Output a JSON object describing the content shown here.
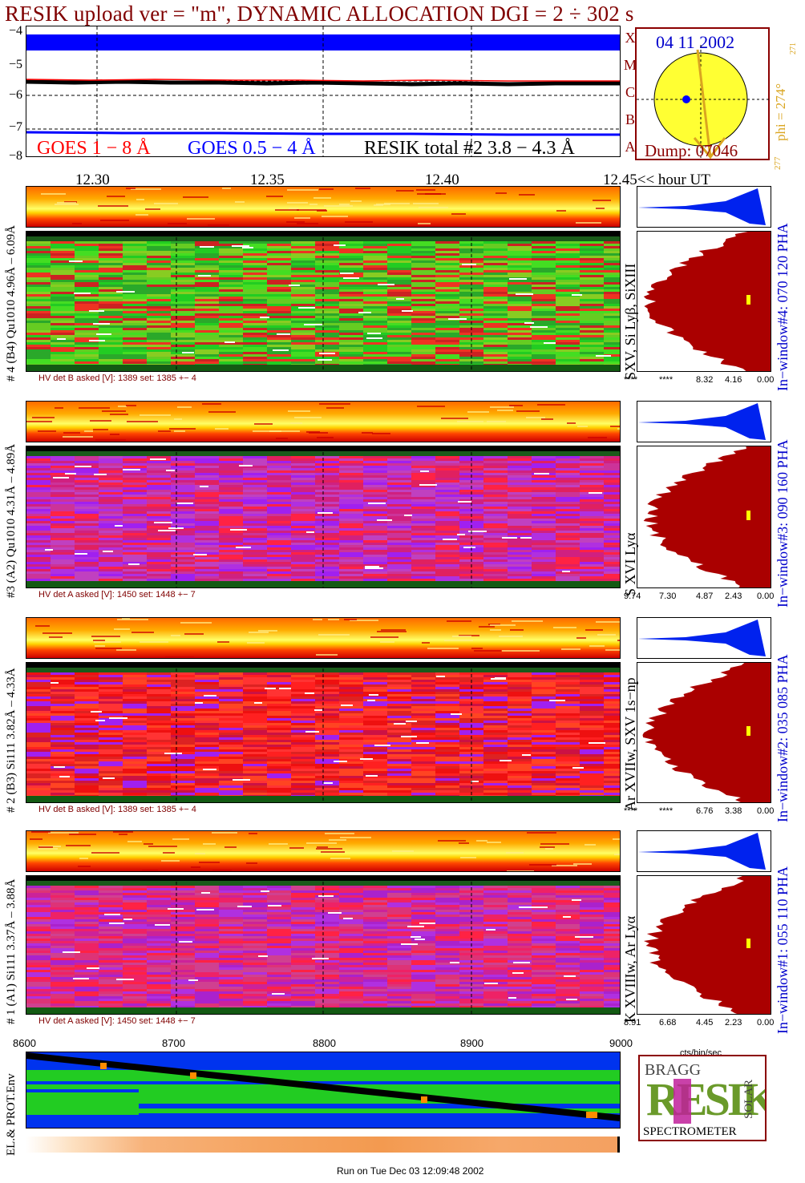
{
  "title": "RESIK upload ver = \"m\", DYNAMIC ALLOCATION  DGI =   2 ÷ 302 s",
  "date": "04 11 2002",
  "dump": "Dump: 07046",
  "phi": {
    "label": "phi = 274°",
    "sup": "271",
    "bottom": "277"
  },
  "sun_letters": [
    "X",
    "M",
    "C",
    "B",
    "A"
  ],
  "goes": {
    "ylabels": [
      "−4",
      "−5",
      "−6",
      "−7",
      "−8"
    ],
    "legend_red": "GOES 1 − 8 Å",
    "legend_blue": "GOES 0.5 − 4 Å",
    "legend_black": "RESIK total #2  3.8 − 4.3 Å",
    "colors": {
      "red": "#ff0000",
      "blue": "#0000ff",
      "black": "#000000"
    }
  },
  "time_ticks": [
    "12.30",
    "12.35",
    "12.40",
    "12.45<< hour UT"
  ],
  "panels": [
    {
      "left_label": "# 4 (B4) Qu1010 4.96Å – 6.09Å",
      "mid_label": "SXV,  Si Lyβ, SiXIII",
      "right_label": "In−window#4:  070 120 PHA",
      "hv": "HV det B asked [V]:  1389 set:  1385 +−   4",
      "axis": [
        "****",
        "****",
        "8.32",
        "4.16",
        "0.00"
      ],
      "scheme": "green"
    },
    {
      "left_label": "#3 (A2) Qu1010  4.31Å – 4.89Å",
      "mid_label": "S XVI Lyα",
      "right_label": "In−window#3:  090 160 PHA",
      "hv": "HV det A asked [V]:  1450 set:  1448 +−    7",
      "axis": [
        "9.74",
        "7.30",
        "4.87",
        "2.43",
        "0.00"
      ],
      "scheme": "purple"
    },
    {
      "left_label": "# 2 (B3) Si111  3.82Å – 4.33Å",
      "mid_label": "Ar XVIIw,  SXV 1s−np",
      "right_label": "In−window#2:  035 085 PHA",
      "hv": "HV det B asked [V]:  1389 set:  1385 +−   4",
      "axis": [
        "****",
        "****",
        "6.76",
        "3.38",
        "0.00"
      ],
      "scheme": "red"
    },
    {
      "left_label": "# 1 (A1) Si111  3.37Å – 3.88Å",
      "mid_label": "K XVIIIw,  Ar Lyα",
      "right_label": "In−window#1:  055 110 PHA",
      "hv": "HV det A asked [V]:  1450 set:  1448 +−    7",
      "axis": [
        "8.91",
        "6.68",
        "4.45",
        "2.23",
        "0.00"
      ],
      "scheme": "magenta"
    }
  ],
  "cts_label": "cts/bin/sec",
  "env": {
    "left_label": "EL.& PROT.Env",
    "xticks": [
      "8600",
      "8700",
      "8800",
      "8900",
      "9000"
    ]
  },
  "logo": {
    "word": "RESIK",
    "bragg": "BRAGG",
    "solar": "SOLAR",
    "spectrometer": "SPECTROMETER"
  },
  "footer": "Run on Tue Dec 03 12:09:48 2002"
}
